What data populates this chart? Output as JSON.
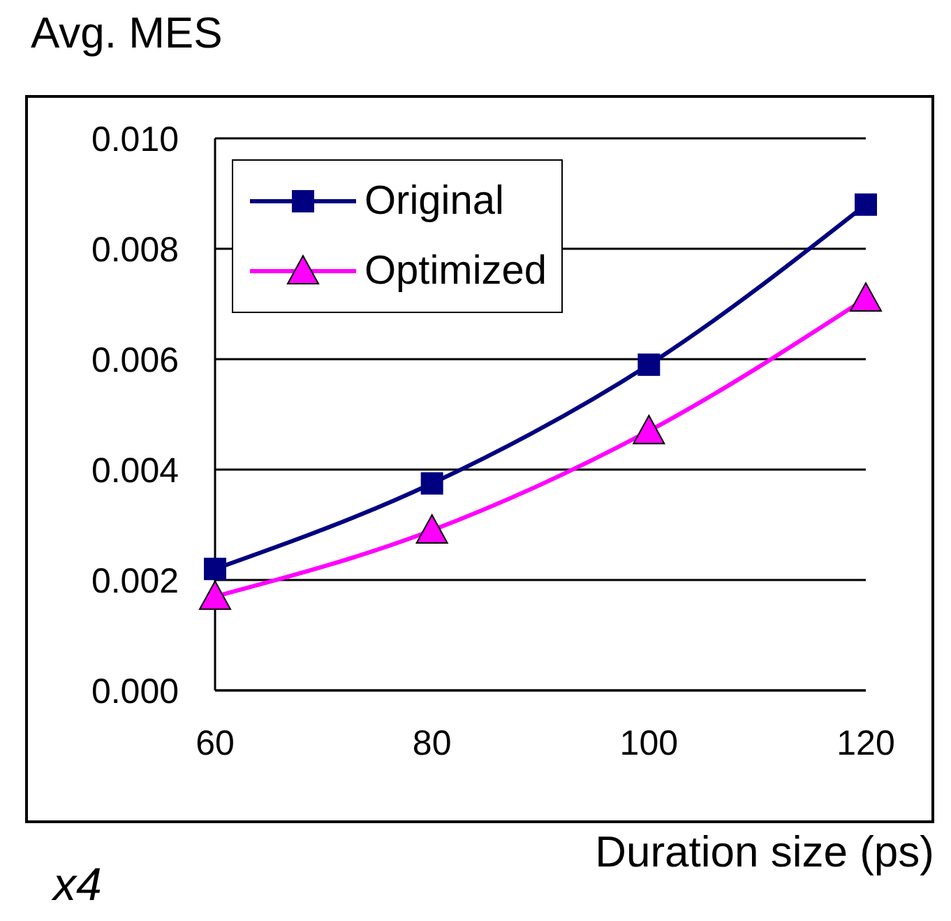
{
  "chart_data": {
    "type": "line",
    "title": "Avg. MES",
    "xlabel": "Duration size (ps)",
    "annotations": [
      "x4"
    ],
    "x": [
      60,
      80,
      100,
      120
    ],
    "series": [
      {
        "name": "Original",
        "color": "#000080",
        "marker": "square",
        "values": [
          0.0022,
          0.00375,
          0.0059,
          0.0088
        ]
      },
      {
        "name": "Optimized",
        "color": "#ff00ff",
        "marker": "triangle",
        "values": [
          0.0017,
          0.0029,
          0.0047,
          0.0071
        ]
      }
    ],
    "xlim": [
      60,
      120
    ],
    "xticks": [
      60,
      80,
      100,
      120
    ],
    "ylim": [
      0,
      0.01
    ],
    "yticks": [
      {
        "value": 0,
        "label": "0.000"
      },
      {
        "value": 0.002,
        "label": "0.002"
      },
      {
        "value": 0.004,
        "label": "0.004"
      },
      {
        "value": 0.006,
        "label": "0.006"
      },
      {
        "value": 0.008,
        "label": "0.008"
      },
      {
        "value": 0.01,
        "label": "0.010"
      }
    ],
    "grid": "y",
    "legend": "top left"
  }
}
